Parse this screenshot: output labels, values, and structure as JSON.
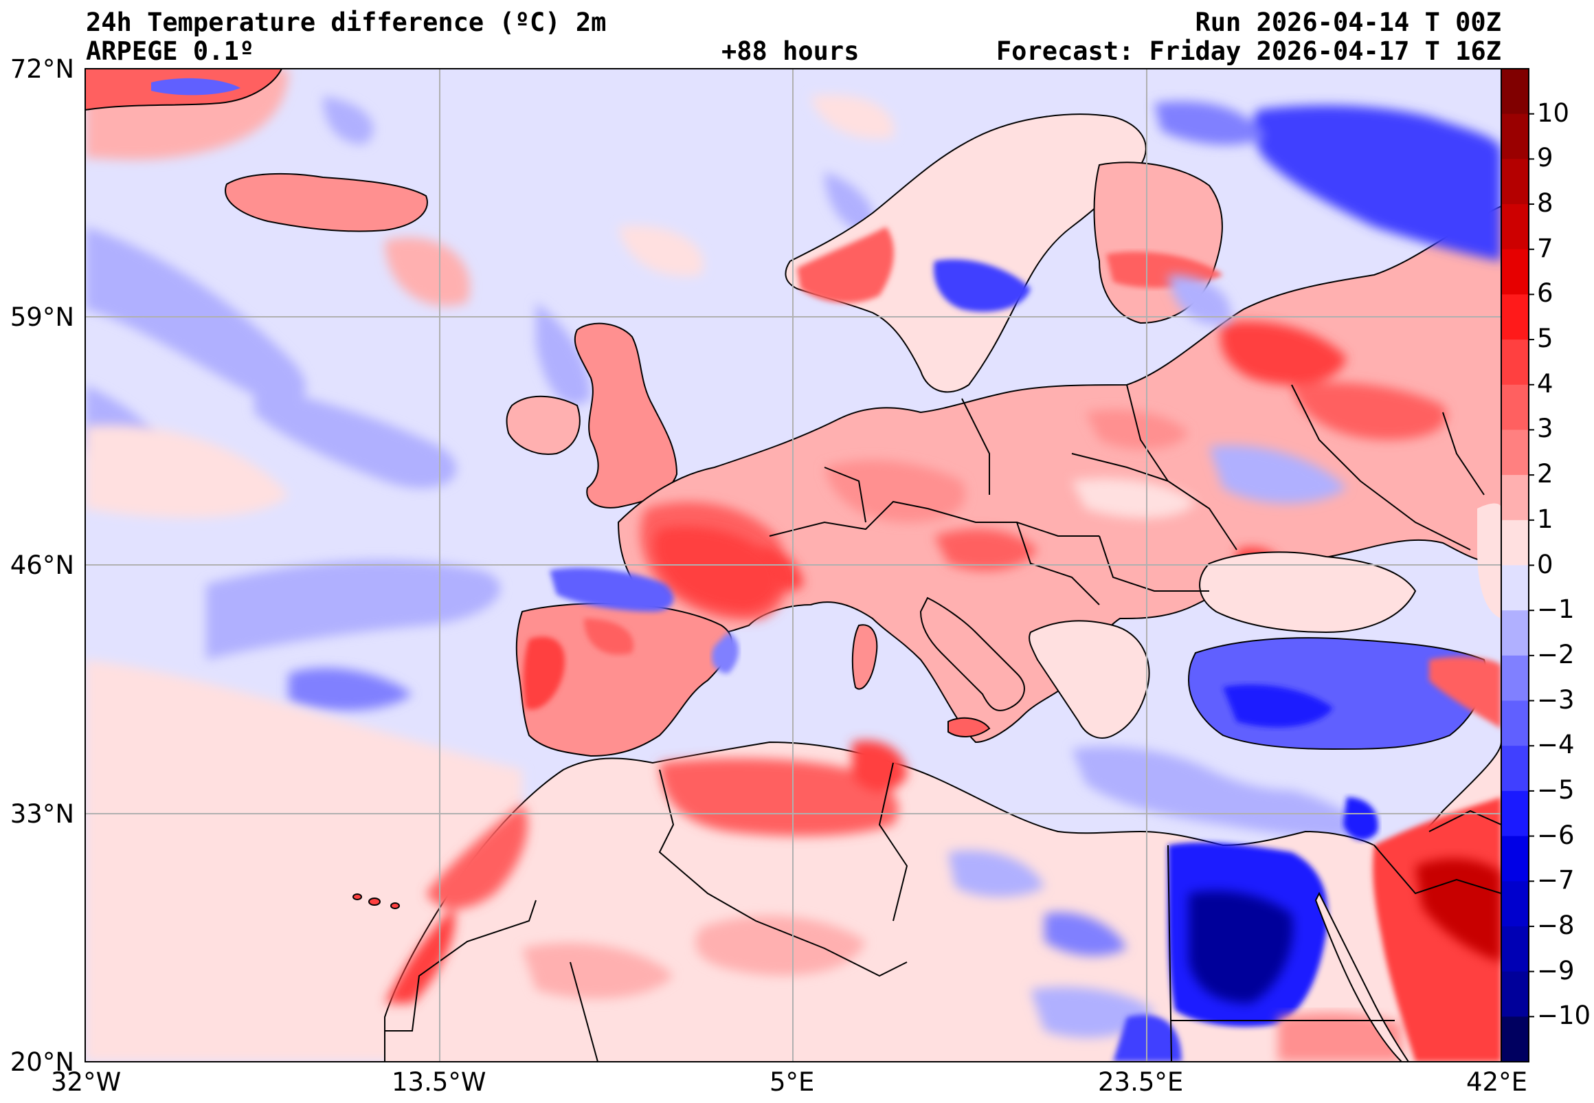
{
  "header": {
    "title": "24h Temperature difference (ºC) 2m",
    "run": "Run 2026-04-14 T 00Z",
    "model": "ARPEGE 0.1º",
    "lead": "+88 hours",
    "forecast": "Forecast: Friday 2026-04-17 T 16Z"
  },
  "axes": {
    "lat_labels": [
      "72°N",
      "59°N",
      "46°N",
      "33°N",
      "20°N"
    ],
    "lon_labels": [
      "32°W",
      "13.5°W",
      "5°E",
      "23.5°E",
      "42°E"
    ]
  },
  "colorbar": {
    "ticks": [
      "10",
      "9",
      "8",
      "7",
      "6",
      "5",
      "4",
      "3",
      "2",
      "1",
      "0",
      "−1",
      "−2",
      "−3",
      "−4",
      "−5",
      "−6",
      "−7",
      "−8",
      "−9",
      "−10"
    ],
    "colors": [
      "#800000",
      "#9a0000",
      "#b40000",
      "#cd0000",
      "#e60000",
      "#ff1a1a",
      "#ff4040",
      "#ff6060",
      "#ff8080",
      "#ffb0b0",
      "#ffe0e0",
      "#e0e0ff",
      "#b0b0ff",
      "#8080ff",
      "#6060ff",
      "#4040ff",
      "#1a1aff",
      "#0000e6",
      "#0000cd",
      "#0000b4",
      "#00009a",
      "#000060"
    ]
  },
  "colors": {
    "background_ocean": "#e2e2ff",
    "warm_light": "#ffe0e0",
    "warm": "#ff9090",
    "warm_strong": "#ff4040",
    "warm_extreme": "#c80000",
    "cold_light": "#b0b0ff",
    "cold": "#6060ff",
    "cold_strong": "#1a1aff",
    "cold_extreme": "#00009a",
    "coastline": "#000000",
    "grid": "#b0b0b0"
  }
}
